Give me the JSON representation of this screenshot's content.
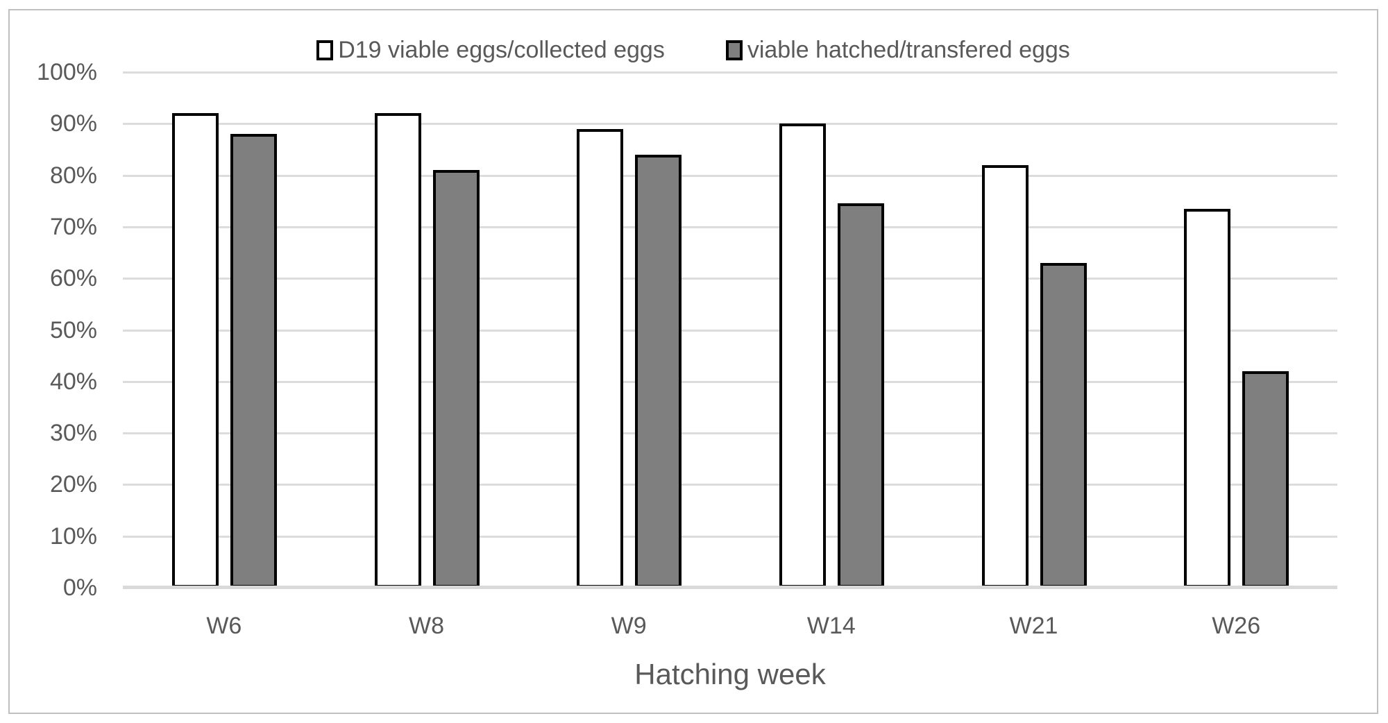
{
  "chart_data": {
    "type": "bar",
    "title": "",
    "xlabel": "Hatching week",
    "ylabel": "",
    "categories": [
      "W6",
      "W8",
      "W9",
      "W14",
      "W21",
      "W26"
    ],
    "series": [
      {
        "name": "D19 viable eggs/collected eggs",
        "fill": "#ffffff",
        "values": [
          92,
          92,
          89,
          90,
          82,
          73.5
        ]
      },
      {
        "name": "viable hatched/transfered eggs",
        "fill": "#7f7f7f",
        "values": [
          88,
          81,
          84,
          74.5,
          63,
          42
        ]
      }
    ],
    "ylim": [
      0,
      100
    ],
    "ytick_step": 10,
    "yticks": [
      "0%",
      "10%",
      "20%",
      "30%",
      "40%",
      "50%",
      "60%",
      "70%",
      "80%",
      "90%",
      "100%"
    ],
    "grid": true,
    "legend_position": "top",
    "colors": {
      "bar_border": "#000000",
      "text": "#595959",
      "gridline": "#dcdcdc",
      "axis_line": "#d9d9d9",
      "frame_border": "#bfbfbf",
      "background": "#ffffff"
    }
  }
}
